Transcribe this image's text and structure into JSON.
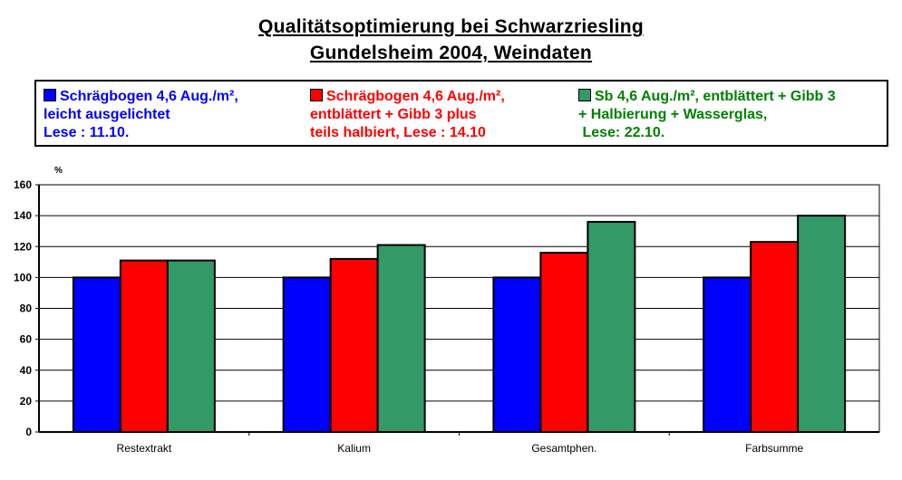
{
  "title_line1": "Qualitätsoptimierung bei Schwarzriesling",
  "title_line2": "Gundelsheim 2004, Weindaten",
  "legend": [
    {
      "text": "Schrägbogen 4,6 Aug./m²,\nleicht ausgelichtet\nLese : 11.10.",
      "color": "#0000ff"
    },
    {
      "text": "Schrägbogen 4,6 Aug./m²,\nentblättert + Gibb 3 plus\nteils halbiert, Lese : 14.10",
      "color": "#ff0000"
    },
    {
      "text": "Sb 4,6 Aug./m², entblättert + Gibb 3\n+ Halbierung + Wasserglas,\n Lese: 22.10.",
      "color": "#339966"
    }
  ],
  "chart_data": {
    "type": "bar",
    "ylabel": "%",
    "xlabel": "",
    "ylim": [
      0,
      160
    ],
    "yticks": [
      0,
      20,
      40,
      60,
      80,
      100,
      120,
      140,
      160
    ],
    "grid": true,
    "categories": [
      "Restextrakt",
      "Kalium",
      "Gesamtphen.",
      "Farbsumme"
    ],
    "series": [
      {
        "name": "Schrägbogen 4,6 Aug./m², leicht ausgelichtet Lese : 11.10.",
        "color": "#0000ff",
        "values": [
          100,
          100,
          100,
          100
        ]
      },
      {
        "name": "Schrägbogen 4,6 Aug./m², entblättert + Gibb 3 plus teils halbiert, Lese : 14.10",
        "color": "#ff0000",
        "values": [
          111,
          112,
          116,
          123
        ]
      },
      {
        "name": "Sb 4,6 Aug./m², entblättert + Gibb 3 + Halbierung + Wasserglas, Lese: 22.10.",
        "color": "#339966",
        "values": [
          111,
          121,
          136,
          140
        ]
      }
    ]
  }
}
